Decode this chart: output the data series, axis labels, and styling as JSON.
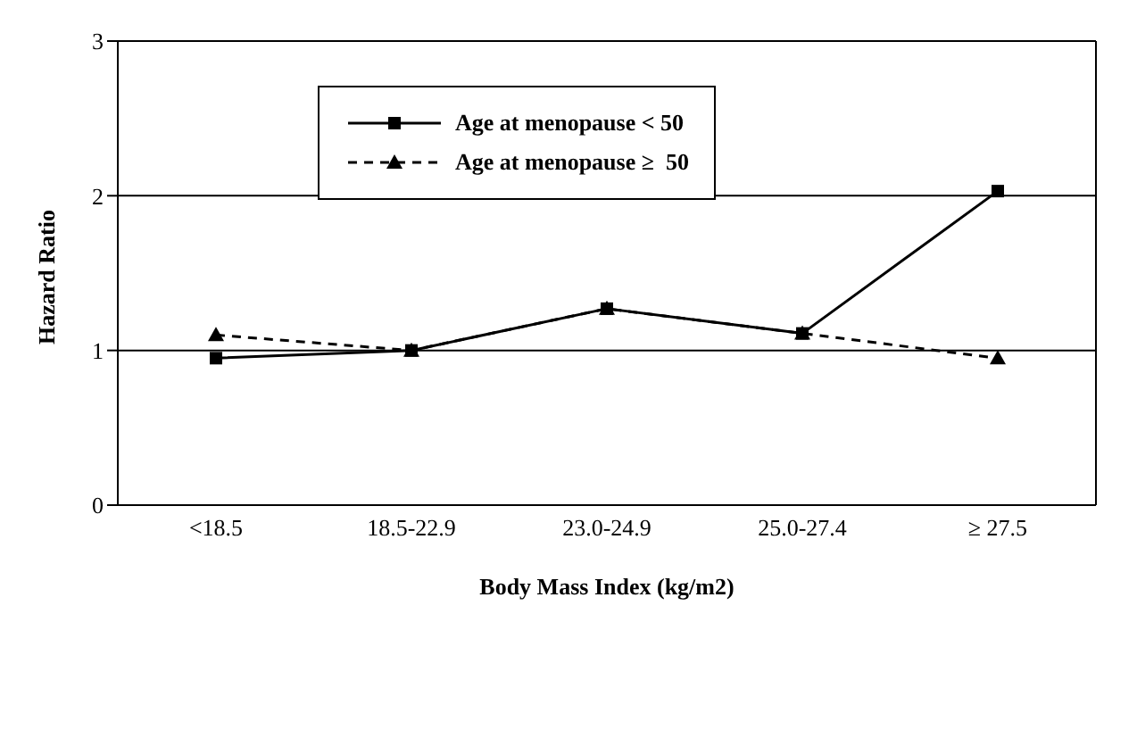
{
  "chart_data": {
    "type": "line",
    "xlabel": "Body Mass Index (kg/m2)",
    "ylabel": "Hazard Ratio",
    "categories": [
      "<18.5",
      "18.5-22.9",
      "23.0-24.9",
      "25.0-27.4",
      "≥ 27.5"
    ],
    "series": [
      {
        "name": "Age at menopause < 50",
        "color": "#000000",
        "values": [
          0.95,
          1.0,
          1.27,
          1.11,
          2.03
        ],
        "marker": "square",
        "line_style": "solid"
      },
      {
        "name": "Age at menopause ≥  50",
        "color": "#000000",
        "values": [
          1.1,
          1.0,
          1.27,
          1.11,
          0.95
        ],
        "marker": "triangle",
        "line_style": "dashed"
      }
    ],
    "ylim": [
      0,
      3
    ],
    "yticks": [
      0,
      1,
      2,
      3
    ],
    "grid": "y",
    "legend": "top"
  }
}
